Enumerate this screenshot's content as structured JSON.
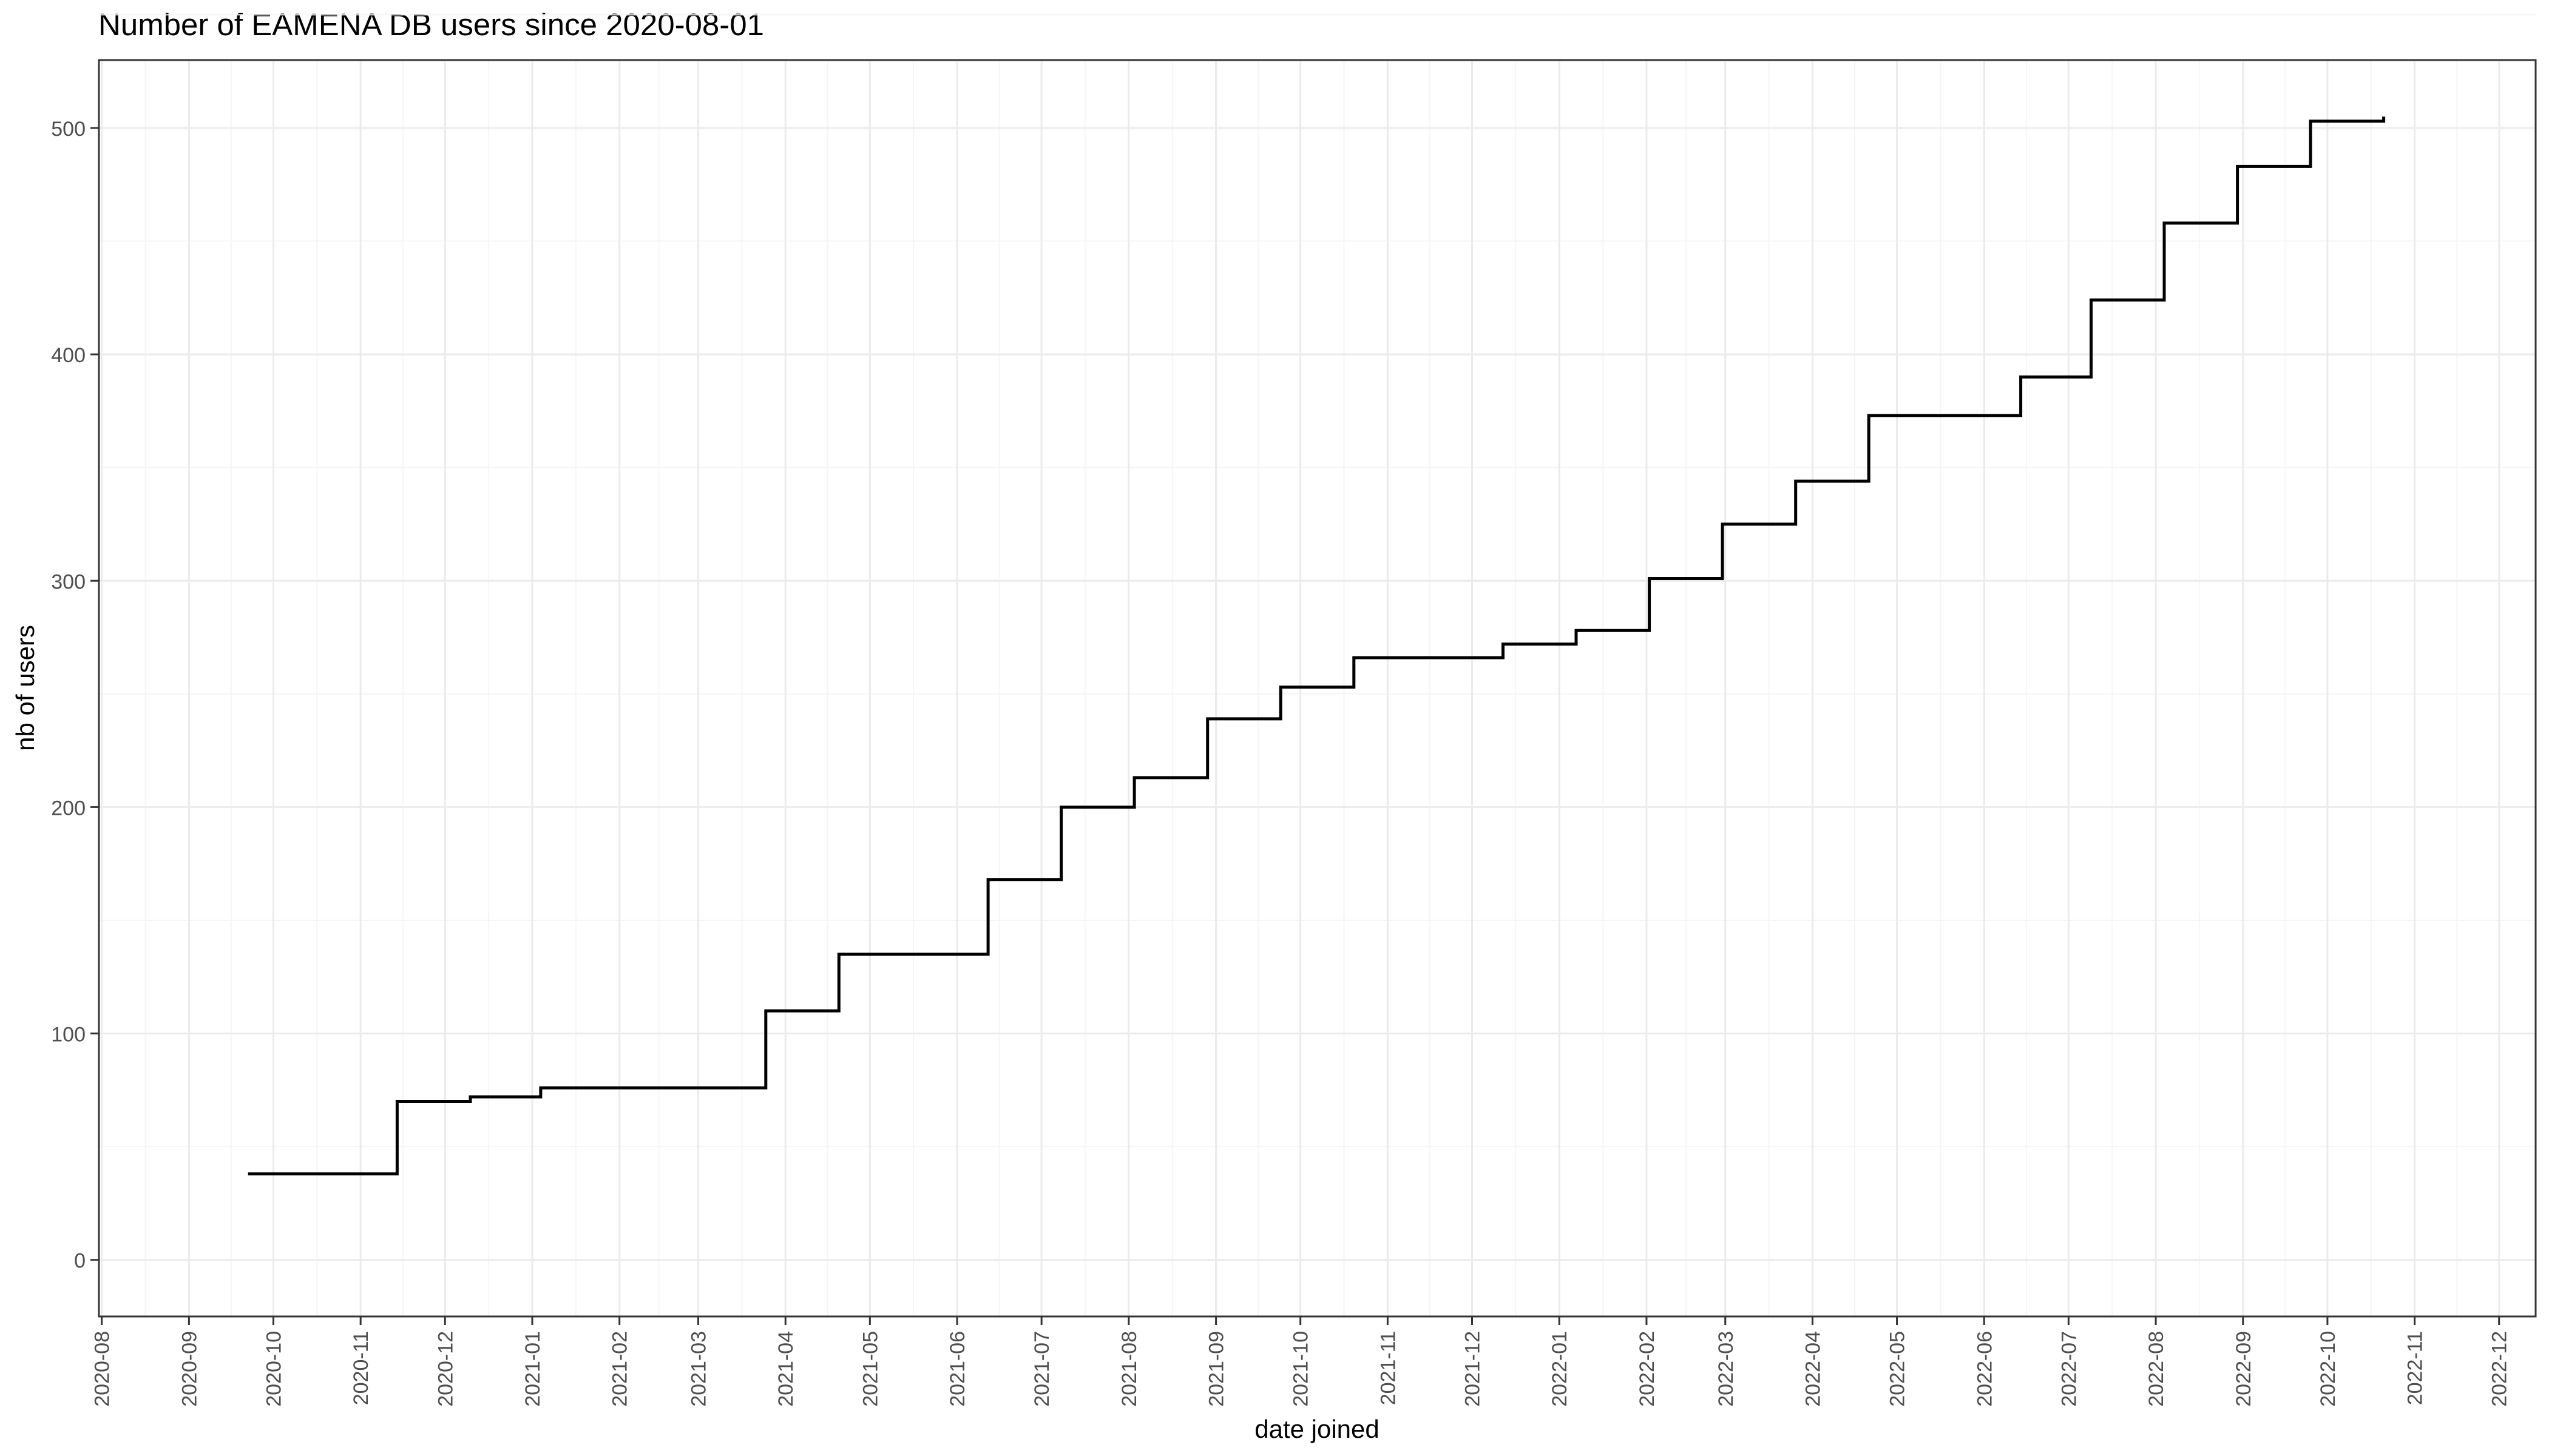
{
  "chart_data": {
    "type": "line",
    "step": "hv",
    "title": "Number of EAMENA DB users since 2020-08-01",
    "xlabel": "date joined",
    "ylabel": "nb of users",
    "xlim": [
      "2020-07-31",
      "2022-12-14"
    ],
    "ylim": [
      -25,
      530
    ],
    "grid": true,
    "legend": "none",
    "colors": {
      "line": "#000000",
      "grid_major": "#ebebeb",
      "grid_minor": "#f5f5f5",
      "panel_border": "#333333",
      "tick_text": "#4d4d4d"
    },
    "y_ticks": [
      0,
      100,
      200,
      300,
      400,
      500
    ],
    "x_ticks": [
      "2020-08-01",
      "2020-09-01",
      "2020-10-01",
      "2020-11-01",
      "2020-12-01",
      "2021-01-01",
      "2021-02-01",
      "2021-03-01",
      "2021-04-01",
      "2021-05-01",
      "2021-06-01",
      "2021-07-01",
      "2021-08-01",
      "2021-09-01",
      "2021-10-01",
      "2021-11-01",
      "2021-12-01",
      "2022-01-01",
      "2022-02-01",
      "2022-03-01",
      "2022-04-01",
      "2022-05-01",
      "2022-06-01",
      "2022-07-01",
      "2022-08-01",
      "2022-09-01",
      "2022-10-01",
      "2022-11-01",
      "2022-12-01"
    ],
    "x_tick_labels": [
      "2020-08",
      "2020-09",
      "2020-10",
      "2020-11",
      "2020-12",
      "2021-01",
      "2021-02",
      "2021-03",
      "2021-04",
      "2021-05",
      "2021-06",
      "2021-07",
      "2021-08",
      "2021-09",
      "2021-10",
      "2021-11",
      "2021-12",
      "2022-01",
      "2022-02",
      "2022-03",
      "2022-04",
      "2022-05",
      "2022-06",
      "2022-07",
      "2022-08",
      "2022-09",
      "2022-10",
      "2022-11",
      "2022-12"
    ],
    "series": [
      {
        "x": [
          "2020-09-22",
          "2020-11-14",
          "2020-12-10",
          "2021-01-04",
          "2021-03-25",
          "2021-04-20",
          "2021-06-12",
          "2021-07-08",
          "2021-08-03",
          "2021-08-29",
          "2021-09-24",
          "2021-10-20",
          "2021-12-12",
          "2022-01-07",
          "2022-02-02",
          "2022-02-28",
          "2022-03-26",
          "2022-04-21",
          "2022-06-14",
          "2022-07-09",
          "2022-08-04",
          "2022-08-30",
          "2022-09-25",
          "2022-10-21"
        ],
        "y": [
          38,
          70,
          72,
          76,
          110,
          135,
          168,
          200,
          213,
          239,
          253,
          266,
          272,
          278,
          301,
          325,
          344,
          373,
          390,
          424,
          458,
          483,
          503,
          505
        ]
      }
    ]
  }
}
